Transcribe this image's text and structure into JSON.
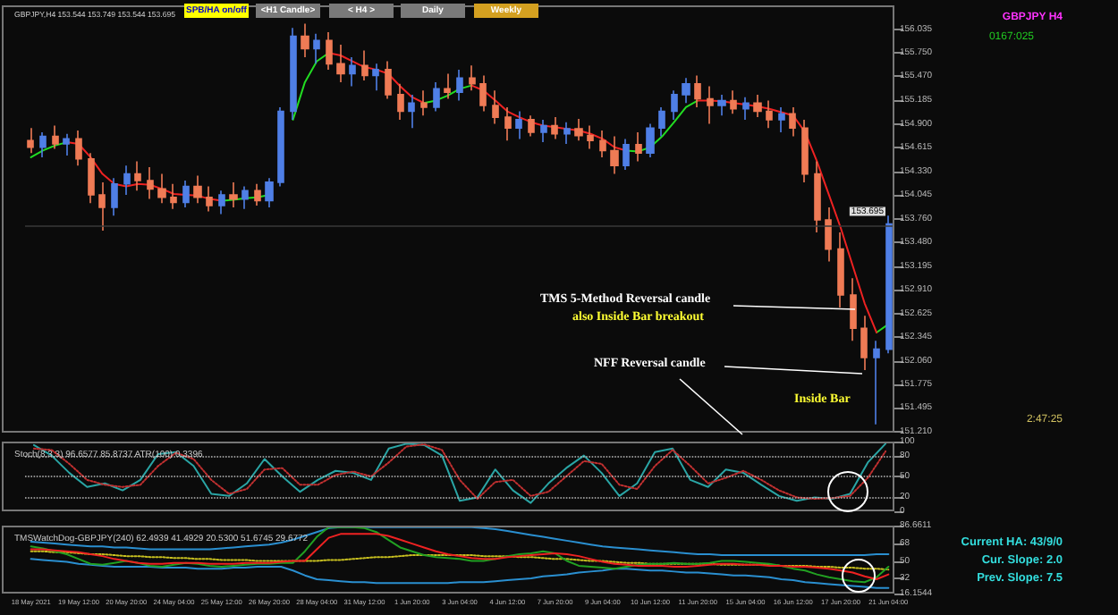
{
  "chart_data": [
    {
      "type": "candlestick",
      "title": "GBPJPY,H4 153.544 153.749 153.544 153.695",
      "tick_labels": "y",
      "categories": [
        null,
        null,
        null,
        null,
        null,
        null,
        null,
        null,
        null,
        null,
        null,
        null,
        null,
        null,
        null,
        null,
        null,
        null,
        null,
        null,
        null,
        null,
        null,
        null,
        null,
        null,
        null,
        null,
        null,
        null,
        null,
        null,
        null,
        null,
        null,
        null,
        null,
        null,
        null,
        null,
        null,
        null,
        null,
        null,
        null,
        null,
        null,
        null,
        null,
        null,
        null,
        null,
        null,
        null,
        null,
        null,
        null,
        null,
        null,
        null,
        null,
        null,
        null,
        null,
        null,
        null,
        null,
        null,
        null,
        null,
        null,
        null,
        null
      ],
      "ohlc": [
        [
          154.7,
          154.85,
          154.55,
          154.62
        ],
        [
          154.62,
          154.8,
          154.5,
          154.75
        ],
        [
          154.75,
          154.88,
          154.6,
          154.66
        ],
        [
          154.66,
          154.78,
          154.52,
          154.72
        ],
        [
          154.72,
          154.82,
          154.4,
          154.48
        ],
        [
          154.48,
          154.55,
          153.95,
          154.05
        ],
        [
          154.05,
          154.2,
          153.62,
          153.9
        ],
        [
          153.9,
          154.25,
          153.8,
          154.18
        ],
        [
          154.18,
          154.4,
          154.05,
          154.3
        ],
        [
          154.3,
          154.45,
          154.1,
          154.22
        ],
        [
          154.22,
          154.38,
          154.0,
          154.12
        ],
        [
          154.12,
          154.3,
          153.95,
          154.02
        ],
        [
          154.02,
          154.18,
          153.88,
          153.96
        ],
        [
          153.96,
          154.22,
          153.9,
          154.15
        ],
        [
          154.15,
          154.28,
          153.95,
          154.02
        ],
        [
          154.02,
          154.15,
          153.85,
          153.92
        ],
        [
          153.92,
          154.1,
          153.82,
          154.05
        ],
        [
          154.05,
          154.2,
          153.9,
          154.0
        ],
        [
          154.0,
          154.15,
          153.88,
          154.1
        ],
        [
          154.1,
          154.18,
          153.92,
          153.98
        ],
        [
          153.98,
          154.25,
          153.9,
          154.2
        ],
        [
          154.2,
          155.1,
          154.15,
          155.05
        ],
        [
          155.05,
          156.05,
          154.95,
          155.95
        ],
        [
          155.95,
          156.1,
          155.7,
          155.8
        ],
        [
          155.8,
          155.98,
          155.62,
          155.9
        ],
        [
          155.9,
          156.0,
          155.55,
          155.62
        ],
        [
          155.62,
          155.85,
          155.4,
          155.5
        ],
        [
          155.5,
          155.7,
          155.35,
          155.6
        ],
        [
          155.6,
          155.78,
          155.42,
          155.48
        ],
        [
          155.48,
          155.62,
          155.3,
          155.55
        ],
        [
          155.55,
          155.65,
          155.2,
          155.25
        ],
        [
          155.25,
          155.38,
          154.95,
          155.05
        ],
        [
          155.05,
          155.25,
          154.85,
          155.15
        ],
        [
          155.15,
          155.3,
          155.0,
          155.1
        ],
        [
          155.1,
          155.4,
          155.05,
          155.32
        ],
        [
          155.32,
          155.5,
          155.2,
          155.28
        ],
        [
          155.28,
          155.55,
          155.18,
          155.45
        ],
        [
          155.45,
          155.6,
          155.3,
          155.38
        ],
        [
          155.38,
          155.48,
          155.05,
          155.12
        ],
        [
          155.12,
          155.3,
          154.9,
          154.98
        ],
        [
          154.98,
          155.1,
          154.7,
          154.85
        ],
        [
          154.85,
          155.05,
          154.72,
          154.95
        ],
        [
          154.95,
          155.0,
          154.75,
          154.8
        ],
        [
          154.8,
          154.95,
          154.68,
          154.88
        ],
        [
          154.88,
          154.98,
          154.72,
          154.78
        ],
        [
          154.78,
          154.92,
          154.66,
          154.84
        ],
        [
          154.84,
          154.96,
          154.7,
          154.76
        ],
        [
          154.76,
          154.88,
          154.6,
          154.7
        ],
        [
          154.7,
          154.82,
          154.5,
          154.58
        ],
        [
          154.58,
          154.75,
          154.3,
          154.4
        ],
        [
          154.4,
          154.72,
          154.35,
          154.65
        ],
        [
          154.65,
          154.8,
          154.45,
          154.55
        ],
        [
          154.55,
          154.9,
          154.5,
          154.85
        ],
        [
          154.85,
          155.1,
          154.75,
          155.05
        ],
        [
          155.05,
          155.3,
          154.95,
          155.25
        ],
        [
          155.25,
          155.45,
          155.15,
          155.38
        ],
        [
          155.38,
          155.48,
          155.1,
          155.2
        ],
        [
          155.2,
          155.35,
          154.9,
          155.12
        ],
        [
          155.12,
          155.25,
          155.0,
          155.18
        ],
        [
          155.18,
          155.3,
          155.02,
          155.08
        ],
        [
          155.08,
          155.22,
          154.95,
          155.15
        ],
        [
          155.15,
          155.25,
          154.98,
          155.05
        ],
        [
          155.05,
          155.18,
          154.85,
          154.95
        ],
        [
          154.95,
          155.1,
          154.8,
          155.02
        ],
        [
          155.02,
          155.1,
          154.75,
          154.85
        ],
        [
          154.85,
          154.95,
          154.2,
          154.3
        ],
        [
          154.3,
          154.45,
          153.6,
          153.75
        ],
        [
          153.75,
          153.9,
          153.25,
          153.4
        ],
        [
          153.4,
          153.6,
          152.7,
          152.85
        ],
        [
          152.85,
          153.05,
          152.3,
          152.45
        ],
        [
          152.45,
          152.6,
          151.95,
          152.1
        ],
        [
          152.1,
          152.3,
          151.3,
          152.2
        ],
        [
          152.2,
          153.8,
          152.15,
          153.7
        ]
      ],
      "colors": [
        "#ef7b55",
        "#4f7fe6",
        "#ef7b55",
        "#4f7fe6",
        "#ef7b55",
        "#ef7b55",
        "#ef7b55",
        "#4f7fe6",
        "#4f7fe6",
        "#ef7b55",
        "#ef7b55",
        "#ef7b55",
        "#ef7b55",
        "#4f7fe6",
        "#ef7b55",
        "#ef7b55",
        "#4f7fe6",
        "#ef7b55",
        "#4f7fe6",
        "#ef7b55",
        "#4f7fe6",
        "#4f7fe6",
        "#4f7fe6",
        "#ef7b55",
        "#4f7fe6",
        "#ef7b55",
        "#ef7b55",
        "#4f7fe6",
        "#ef7b55",
        "#4f7fe6",
        "#ef7b55",
        "#ef7b55",
        "#4f7fe6",
        "#ef7b55",
        "#4f7fe6",
        "#ef7b55",
        "#4f7fe6",
        "#ef7b55",
        "#ef7b55",
        "#ef7b55",
        "#ef7b55",
        "#4f7fe6",
        "#ef7b55",
        "#4f7fe6",
        "#ef7b55",
        "#4f7fe6",
        "#ef7b55",
        "#ef7b55",
        "#ef7b55",
        "#ef7b55",
        "#4f7fe6",
        "#ef7b55",
        "#4f7fe6",
        "#4f7fe6",
        "#4f7fe6",
        "#4f7fe6",
        "#ef7b55",
        "#ef7b55",
        "#4f7fe6",
        "#ef7b55",
        "#4f7fe6",
        "#ef7b55",
        "#ef7b55",
        "#4f7fe6",
        "#ef7b55",
        "#ef7b55",
        "#ef7b55",
        "#ef7b55",
        "#ef7b55",
        "#ef7b55",
        "#ef7b55",
        "#4f7fe6",
        "#4f7fe6"
      ],
      "series": [
        {
          "type": "line",
          "color": "#22dd22",
          "values": [
            154.5,
            154.58,
            154.64,
            154.68,
            null,
            null,
            null,
            null,
            null,
            null,
            null,
            null,
            null,
            null,
            null,
            null,
            153.98,
            153.99,
            154.01,
            154.02,
            154.05,
            null,
            154.95,
            155.4,
            155.65,
            155.75,
            null,
            null,
            null,
            null,
            null,
            null,
            null,
            155.15,
            155.18,
            155.24,
            155.32,
            155.36,
            null,
            null,
            null,
            null,
            null,
            null,
            null,
            null,
            null,
            null,
            null,
            null,
            154.58,
            154.57,
            154.62,
            154.75,
            154.92,
            155.1,
            155.18,
            null,
            null,
            null,
            null,
            null,
            null,
            null,
            null,
            null,
            null,
            null,
            null,
            null,
            null,
            152.4,
            152.5
          ]
        },
        {
          "type": "line",
          "color": "#ee2222",
          "values": [
            null,
            null,
            null,
            154.68,
            154.66,
            154.5,
            154.3,
            154.18,
            154.15,
            154.18,
            154.17,
            154.12,
            154.06,
            154.05,
            154.04,
            154.0,
            153.98,
            null,
            null,
            null,
            null,
            null,
            null,
            null,
            null,
            155.75,
            155.72,
            155.65,
            155.58,
            155.55,
            155.5,
            155.35,
            155.22,
            155.15,
            null,
            null,
            null,
            155.36,
            155.3,
            155.18,
            155.05,
            154.98,
            154.92,
            154.88,
            154.86,
            154.84,
            154.82,
            154.78,
            154.72,
            154.62,
            154.58,
            null,
            null,
            null,
            null,
            null,
            155.18,
            155.18,
            155.17,
            155.15,
            155.13,
            155.11,
            155.08,
            155.04,
            155.0,
            154.8,
            154.45,
            154.05,
            153.65,
            153.2,
            152.75,
            152.4,
            null
          ]
        }
      ],
      "ylim": [
        151.2,
        156.32
      ],
      "yticks": [
        {
          "value": 151.21,
          "label": "151.210"
        },
        {
          "value": 151.495,
          "label": "151.495"
        },
        {
          "value": 151.775,
          "label": "151.775"
        },
        {
          "value": 152.06,
          "label": "152.060"
        },
        {
          "value": 152.345,
          "label": "152.345"
        },
        {
          "value": 152.625,
          "label": "152.625"
        },
        {
          "value": 152.91,
          "label": "152.910"
        },
        {
          "value": 153.195,
          "label": "153.195"
        },
        {
          "value": 153.48,
          "label": "153.480"
        },
        {
          "value": 153.76,
          "label": "153.760"
        },
        {
          "value": 154.045,
          "label": "154.045"
        },
        {
          "value": 154.33,
          "label": "154.330"
        },
        {
          "value": 154.615,
          "label": "154.615"
        },
        {
          "value": 154.9,
          "label": "154.900"
        },
        {
          "value": 155.185,
          "label": "155.185"
        },
        {
          "value": 155.47,
          "label": "155.470"
        },
        {
          "value": 155.75,
          "label": "155.750"
        },
        {
          "value": 156.035,
          "label": "156.035"
        }
      ],
      "ref_lines": [
        {
          "axis": "y",
          "value": 153.695,
          "label": "153.695",
          "color": "#3a3a3a"
        }
      ],
      "annotations": [
        "SPB/HA on/off",
        "<H1 Candle>",
        "< H4 >",
        "Daily",
        "Weekly",
        "GBPJPY H4",
        "0167:025",
        "TMS 5-Method Reversal candle",
        "also Inside Bar breakout",
        "NFF Reversal candle",
        "Inside Bar",
        "2:47:25"
      ]
    },
    {
      "type": "line",
      "title": "Stoch(8,3,3) 96.6577 85.8737 ATR(100) 0.3396",
      "tick_labels": "y",
      "categories": [
        null,
        null,
        null,
        null,
        null,
        null,
        null,
        null,
        null,
        null,
        null,
        null,
        null,
        null,
        null,
        null,
        null,
        null,
        null,
        null,
        null,
        null,
        null,
        null,
        null,
        null,
        null,
        null,
        null,
        null,
        null,
        null,
        null,
        null,
        null,
        null,
        null,
        null,
        null,
        null,
        null,
        null,
        null,
        null,
        null,
        null,
        null,
        null,
        null
      ],
      "series": [
        {
          "color": "#2aa5a5",
          "values": [
            95,
            80,
            55,
            35,
            40,
            30,
            45,
            82,
            85,
            65,
            25,
            22,
            40,
            75,
            50,
            28,
            45,
            58,
            55,
            45,
            90,
            97,
            95,
            80,
            15,
            20,
            60,
            30,
            12,
            40,
            62,
            80,
            55,
            22,
            40,
            85,
            90,
            45,
            35,
            60,
            55,
            38,
            22,
            15,
            20,
            18,
            25,
            70,
            97
          ]
        },
        {
          "color": "#c03030",
          "line_style": "dotted",
          "values": [
            90,
            88,
            68,
            45,
            38,
            35,
            38,
            65,
            84,
            75,
            45,
            25,
            32,
            60,
            62,
            38,
            38,
            52,
            57,
            50,
            70,
            93,
            96,
            88,
            45,
            18,
            42,
            45,
            22,
            28,
            50,
            72,
            68,
            38,
            32,
            65,
            88,
            65,
            40,
            48,
            58,
            45,
            30,
            20,
            18,
            19,
            22,
            48,
            86
          ]
        }
      ],
      "ylim": [
        0,
        100
      ],
      "yticks": [
        0,
        20,
        50,
        80,
        100
      ],
      "ref_lines": [
        {
          "axis": "y",
          "value": 20,
          "color": "#bbbbbb",
          "line_style": "dotted"
        },
        {
          "axis": "y",
          "value": 50,
          "color": "#bbbbbb",
          "line_style": "dotted"
        },
        {
          "axis": "y",
          "value": 80,
          "color": "#bbbbbb",
          "line_style": "dotted"
        }
      ]
    },
    {
      "type": "line",
      "title": "TMSWatchDog-GBPJPY(240) 62.4939 41.4929 20.5300 51.6745 29.6772",
      "categories": [
        "18 May 2021",
        null,
        null,
        null,
        "19 May 12:00",
        null,
        null,
        null,
        "20 May 20:00",
        null,
        null,
        null,
        "24 May 04:00",
        null,
        null,
        null,
        "25 May 12:00",
        null,
        null,
        null,
        "26 May 20:00",
        null,
        null,
        null,
        "28 May 04:00",
        null,
        null,
        null,
        "31 May 12:00",
        null,
        null,
        null,
        "1 Jun 20:00",
        null,
        null,
        null,
        "3 Jun 04:00",
        null,
        null,
        null,
        "4 Jun 12:00",
        null,
        null,
        null,
        "7 Jun 20:00",
        null,
        null,
        null,
        "9 Jun 04:00",
        null,
        null,
        null,
        "10 Jun 12:00",
        null,
        null,
        null,
        "11 Jun 20:00",
        null,
        null,
        null,
        "15 Jun 04:00",
        null,
        null,
        null,
        "16 Jun 12:00",
        null,
        null,
        null,
        "17 Jun 20:00",
        null,
        null,
        null,
        "21 Jun 04:00"
      ],
      "series": [
        {
          "color": "#2a8fd0",
          "values": [
            70,
            69,
            68,
            67,
            66,
            65,
            65,
            64,
            64,
            63,
            62,
            62,
            62,
            62,
            62,
            62,
            63,
            64,
            65,
            66,
            67,
            69,
            72,
            76,
            80,
            84,
            85,
            85,
            85,
            85,
            85,
            85,
            85,
            85,
            85,
            85,
            85,
            85,
            84,
            83,
            81,
            79,
            77,
            75,
            73,
            71,
            69,
            67,
            65,
            64,
            63,
            62,
            61,
            60,
            59,
            58,
            57,
            57,
            56,
            56,
            56,
            56,
            56,
            56,
            56,
            56,
            56,
            56,
            56,
            56,
            56,
            57,
            57
          ]
        },
        {
          "color": "#2a8fd0",
          "values": [
            52,
            51,
            50,
            49,
            47,
            46,
            45,
            44,
            44,
            44,
            44,
            43,
            43,
            43,
            42,
            42,
            42,
            43,
            43,
            44,
            44,
            44,
            40,
            35,
            31,
            30,
            29,
            28,
            28,
            27,
            27,
            27,
            27,
            27,
            27,
            27,
            28,
            28,
            28,
            29,
            30,
            31,
            32,
            34,
            35,
            36,
            38,
            39,
            40,
            42,
            42,
            41,
            40,
            40,
            39,
            38,
            38,
            37,
            36,
            35,
            35,
            34,
            33,
            31,
            30,
            28,
            27,
            26,
            25,
            24,
            23,
            22,
            22
          ]
        },
        {
          "color": "#c8c020",
          "line_style": "dotted",
          "values": [
            60,
            60,
            59,
            59,
            58,
            57,
            57,
            56,
            55,
            55,
            54,
            54,
            53,
            53,
            52,
            52,
            51,
            51,
            51,
            50,
            50,
            50,
            50,
            50,
            50,
            51,
            51,
            52,
            53,
            54,
            54,
            55,
            56,
            56,
            56,
            56,
            56,
            56,
            55,
            55,
            55,
            54,
            54,
            53,
            52,
            52,
            51,
            50,
            50,
            49,
            48,
            48,
            47,
            47,
            47,
            47,
            47,
            47,
            46,
            46,
            46,
            46,
            46,
            45,
            45,
            45,
            44,
            44,
            43,
            43,
            42,
            42,
            41
          ]
        },
        {
          "color": "#22a022",
          "values": [
            65,
            63,
            60,
            57,
            52,
            47,
            46,
            48,
            50,
            48,
            45,
            44,
            46,
            48,
            47,
            45,
            44,
            45,
            46,
            47,
            47,
            48,
            48,
            60,
            75,
            85,
            85,
            85,
            84,
            80,
            72,
            64,
            60,
            56,
            54,
            53,
            52,
            50,
            50,
            52,
            55,
            57,
            58,
            60,
            58,
            50,
            45,
            44,
            43,
            42,
            44,
            46,
            47,
            47,
            48,
            47,
            47,
            48,
            50,
            50,
            49,
            48,
            47,
            45,
            42,
            40,
            36,
            33,
            31,
            29,
            28,
            33,
            44
          ]
        },
        {
          "color": "#ee2222",
          "values": [
            62,
            62,
            61,
            60,
            59,
            57,
            55,
            52,
            50,
            48,
            47,
            47,
            48,
            48,
            48,
            47,
            47,
            47,
            48,
            48,
            48,
            49,
            50,
            50,
            62,
            74,
            78,
            78,
            78,
            78,
            76,
            72,
            68,
            64,
            60,
            57,
            55,
            53,
            52,
            52,
            54,
            55,
            56,
            57,
            58,
            57,
            55,
            52,
            49,
            47,
            46,
            45,
            45,
            45,
            44,
            44,
            45,
            46,
            47,
            47,
            46,
            46,
            45,
            45,
            44,
            44,
            43,
            42,
            40,
            38,
            34,
            31,
            36
          ]
        }
      ],
      "ylim": [
        16.1544,
        86.6611
      ],
      "yticks": [
        16.1544,
        32,
        50,
        68,
        86.6611
      ],
      "annotations": [
        "Current HA: 43/9/0",
        "Cur. Slope: 2.0",
        "Prev. Slope: 7.5"
      ]
    }
  ]
}
